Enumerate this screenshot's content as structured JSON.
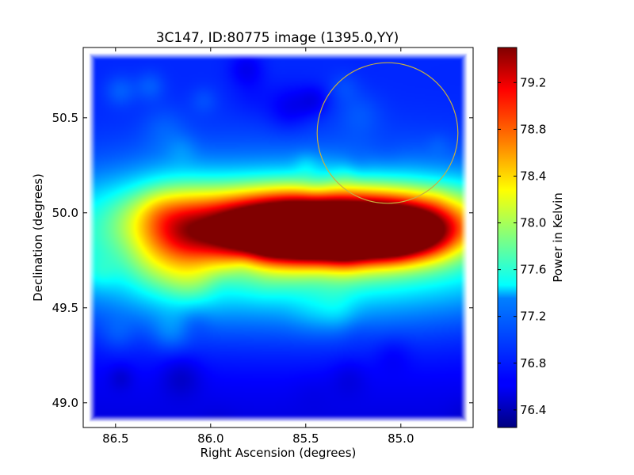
{
  "chart_data": {
    "type": "heatmap",
    "title": "3C147, ID:80775 image (1395.0,YY)",
    "xlabel": "Right Ascension (degrees)",
    "ylabel": "Declination (degrees)",
    "colorbar_label": "Power in Kelvin",
    "colormap": "jet",
    "x_reversed": true,
    "xlim": [
      86.67,
      84.62
    ],
    "ylim": [
      48.87,
      50.87
    ],
    "x_ticks": [
      86.5,
      86.0,
      85.5,
      85.0
    ],
    "x_tick_labels": [
      "86.5",
      "86.0",
      "85.5",
      "85.0"
    ],
    "y_ticks": [
      49.0,
      49.5,
      50.0,
      50.5
    ],
    "y_tick_labels": [
      "49.0",
      "49.5",
      "50.0",
      "50.5"
    ],
    "colorbar_range": [
      76.25,
      79.5
    ],
    "colorbar_ticks": [
      76.4,
      76.8,
      77.2,
      77.6,
      78.0,
      78.4,
      78.8,
      79.2
    ],
    "colorbar_tick_labels": [
      "76.4",
      "76.8",
      "77.2",
      "77.6",
      "78.0",
      "78.4",
      "78.8",
      "79.2"
    ],
    "background_level": 76.6,
    "emission_components": [
      {
        "ra": 85.55,
        "dec": 49.9,
        "sigma_ra": 0.35,
        "sigma_dec": 0.1,
        "peak": 2.9
      },
      {
        "ra": 85.2,
        "dec": 49.88,
        "sigma_ra": 0.3,
        "sigma_dec": 0.09,
        "peak": 1.6
      },
      {
        "ra": 84.95,
        "dec": 49.92,
        "sigma_ra": 0.2,
        "sigma_dec": 0.1,
        "peak": 1.1
      },
      {
        "ra": 85.5,
        "dec": 49.85,
        "sigma_ra": 0.95,
        "sigma_dec": 0.22,
        "peak": 1.1
      },
      {
        "ra": 85.6,
        "dec": 49.8,
        "sigma_ra": 1.3,
        "sigma_dec": 0.38,
        "peak": 0.45
      },
      {
        "ra": 86.2,
        "dec": 49.85,
        "sigma_ra": 0.15,
        "sigma_dec": 0.2,
        "peak": 0.7
      },
      {
        "ra": 85.4,
        "dec": 50.05,
        "sigma_ra": 0.6,
        "sigma_dec": 0.1,
        "peak": 0.9
      }
    ],
    "circle": {
      "ra": 85.07,
      "dec": 50.42,
      "radius_deg": 0.37,
      "color": "#c8b040"
    }
  }
}
